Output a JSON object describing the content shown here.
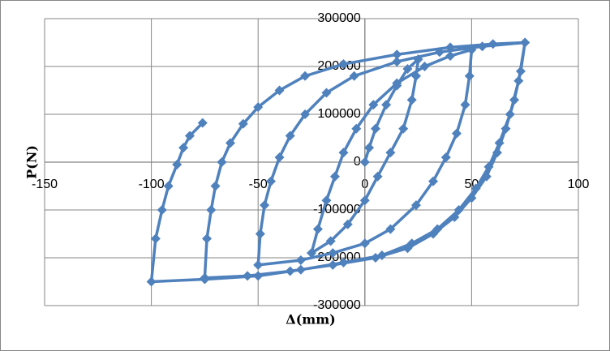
{
  "chart_data": {
    "type": "line",
    "x_label": "Δ(mm)",
    "y_label": "P(N)",
    "xlim": [
      -150,
      100
    ],
    "xticks": [
      -150,
      -100,
      -50,
      0,
      50,
      100
    ],
    "ylim": [
      -300000,
      300000
    ],
    "yticks": [
      -300000,
      -200000,
      -100000,
      0,
      100000,
      200000,
      300000
    ],
    "grid": true,
    "x": [
      0,
      2,
      5,
      10,
      15,
      20,
      25,
      24,
      22,
      18,
      12,
      6,
      0,
      -8,
      -16,
      -25,
      -22,
      -18,
      -14,
      -10,
      -4,
      4,
      15,
      28,
      40,
      50,
      49,
      47,
      43,
      38,
      32,
      24,
      12,
      0,
      -15,
      -30,
      -50,
      -49,
      -47,
      -44,
      -40,
      -35,
      -28,
      -18,
      -5,
      15,
      35,
      55,
      75,
      73,
      70,
      66,
      62,
      57,
      50,
      42,
      32,
      20,
      5,
      -15,
      -35,
      -55,
      -75,
      -74,
      -72,
      -70,
      -67,
      -63,
      -57,
      -50,
      -40,
      -28,
      -10,
      15,
      40,
      60,
      75,
      72,
      68,
      63,
      58,
      52,
      44,
      34,
      22,
      8,
      -10,
      -30,
      -50,
      -75,
      -100,
      -98,
      -95,
      -92,
      -88,
      -85,
      -82,
      -76
    ],
    "series": [
      {
        "name": "P(N)",
        "color": "#4f81bd",
        "values": [
          0,
          30000,
          70000,
          120000,
          160000,
          195000,
          215000,
          180000,
          130000,
          70000,
          20000,
          -30000,
          -80000,
          -130000,
          -165000,
          -190000,
          -140000,
          -80000,
          -30000,
          20000,
          70000,
          120000,
          165000,
          200000,
          222000,
          235000,
          180000,
          120000,
          60000,
          10000,
          -40000,
          -90000,
          -140000,
          -170000,
          -190000,
          -205000,
          -215000,
          -150000,
          -90000,
          -40000,
          10000,
          55000,
          100000,
          145000,
          180000,
          210000,
          230000,
          242000,
          250000,
          190000,
          130000,
          70000,
          20000,
          -30000,
          -75000,
          -115000,
          -150000,
          -180000,
          -200000,
          -215000,
          -228000,
          -238000,
          -242000,
          -160000,
          -100000,
          -50000,
          0,
          40000,
          80000,
          115000,
          150000,
          180000,
          205000,
          225000,
          240000,
          247000,
          250000,
          170000,
          100000,
          40000,
          -10000,
          -55000,
          -100000,
          -140000,
          -170000,
          -195000,
          -210000,
          -225000,
          -238000,
          -245000,
          -250000,
          -160000,
          -100000,
          -50000,
          -5000,
          30000,
          55000,
          82000
        ]
      }
    ]
  }
}
